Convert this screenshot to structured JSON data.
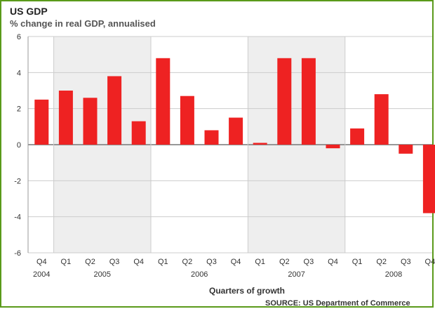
{
  "chart_data": {
    "type": "bar",
    "title": "US GDP",
    "subtitle": "% change in real GDP, annualised",
    "xlabel": "Quarters of growth",
    "ylabel": "",
    "source": "SOURCE: US Department of Commerce",
    "ylim": [
      -6,
      6
    ],
    "yticks": [
      6,
      4,
      2,
      0,
      -2,
      -4,
      -6
    ],
    "grid": true,
    "categories": [
      "Q4",
      "Q1",
      "Q2",
      "Q3",
      "Q4",
      "Q1",
      "Q2",
      "Q3",
      "Q4",
      "Q1",
      "Q2",
      "Q3",
      "Q4",
      "Q1",
      "Q2",
      "Q3",
      "Q4"
    ],
    "values": [
      2.5,
      3.0,
      2.6,
      3.8,
      1.3,
      4.8,
      2.7,
      0.8,
      1.5,
      0.1,
      4.8,
      4.8,
      -0.2,
      0.9,
      2.8,
      -0.5,
      -3.8
    ],
    "years": [
      {
        "label": "2004",
        "start": 0,
        "end": 0
      },
      {
        "label": "2005",
        "start": 1,
        "end": 4
      },
      {
        "label": "2006",
        "start": 5,
        "end": 8
      },
      {
        "label": "2007",
        "start": 9,
        "end": 12
      },
      {
        "label": "2008",
        "start": 13,
        "end": 16
      }
    ],
    "colors": {
      "bar": "#ee2222",
      "shade": "#eeeeee",
      "grid": "#cccccc",
      "zero": "#777777"
    }
  }
}
